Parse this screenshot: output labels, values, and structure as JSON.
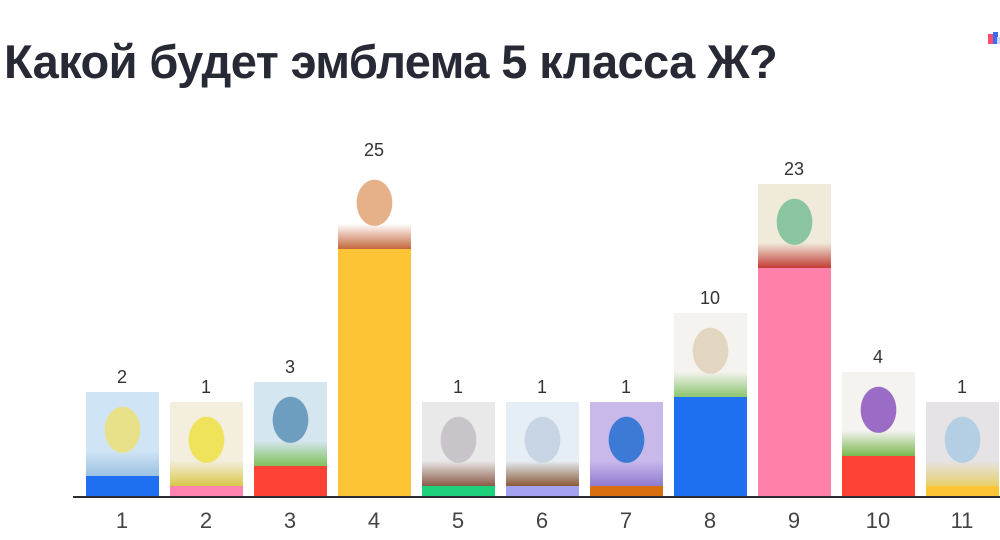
{
  "title": "Какой будет эмблема 5 класса Ж?",
  "chart_data": {
    "type": "bar",
    "title": "Какой будет эмблема 5 класса Ж?",
    "categories": [
      "1",
      "2",
      "3",
      "4",
      "5",
      "6",
      "7",
      "8",
      "9",
      "10",
      "11"
    ],
    "values": [
      2,
      1,
      3,
      25,
      1,
      1,
      1,
      10,
      23,
      4,
      1
    ],
    "colors": [
      "#1f6ff2",
      "#ff85b0",
      "#ff4236",
      "#fdc436",
      "#1dd27a",
      "#a3a3f0",
      "#d9700f",
      "#1f6ff2",
      "#ff80a8",
      "#ff4236",
      "#fdc436"
    ],
    "image_palettes": [
      [
        "#cfe4f5",
        "#e9e08a",
        "#9cc2e2"
      ],
      [
        "#f3eedd",
        "#efe35c",
        "#d9c94a"
      ],
      [
        "#d5e6f0",
        "#6d9ec0",
        "#7fc25a"
      ],
      [
        "#ffffff",
        "#e6b088",
        "#c4673c"
      ],
      [
        "#e9e9e9",
        "#c9c4c9",
        "#8b5a48"
      ],
      [
        "#e6eef5",
        "#c6d4e4",
        "#8a5a3a"
      ],
      [
        "#c9b8ea",
        "#3c7ad6",
        "#8f7bd0"
      ],
      [
        "#f5f3ef",
        "#e2d6c0",
        "#8bc470"
      ],
      [
        "#f0eadb",
        "#8bc4a0",
        "#c23c33"
      ],
      [
        "#f4f3f0",
        "#9a6cc6",
        "#79b84d"
      ],
      [
        "#e5e3e6",
        "#b4cfe4",
        "#e7d06b"
      ]
    ],
    "ylim": [
      0,
      25
    ],
    "grid": false,
    "legend": "none"
  }
}
